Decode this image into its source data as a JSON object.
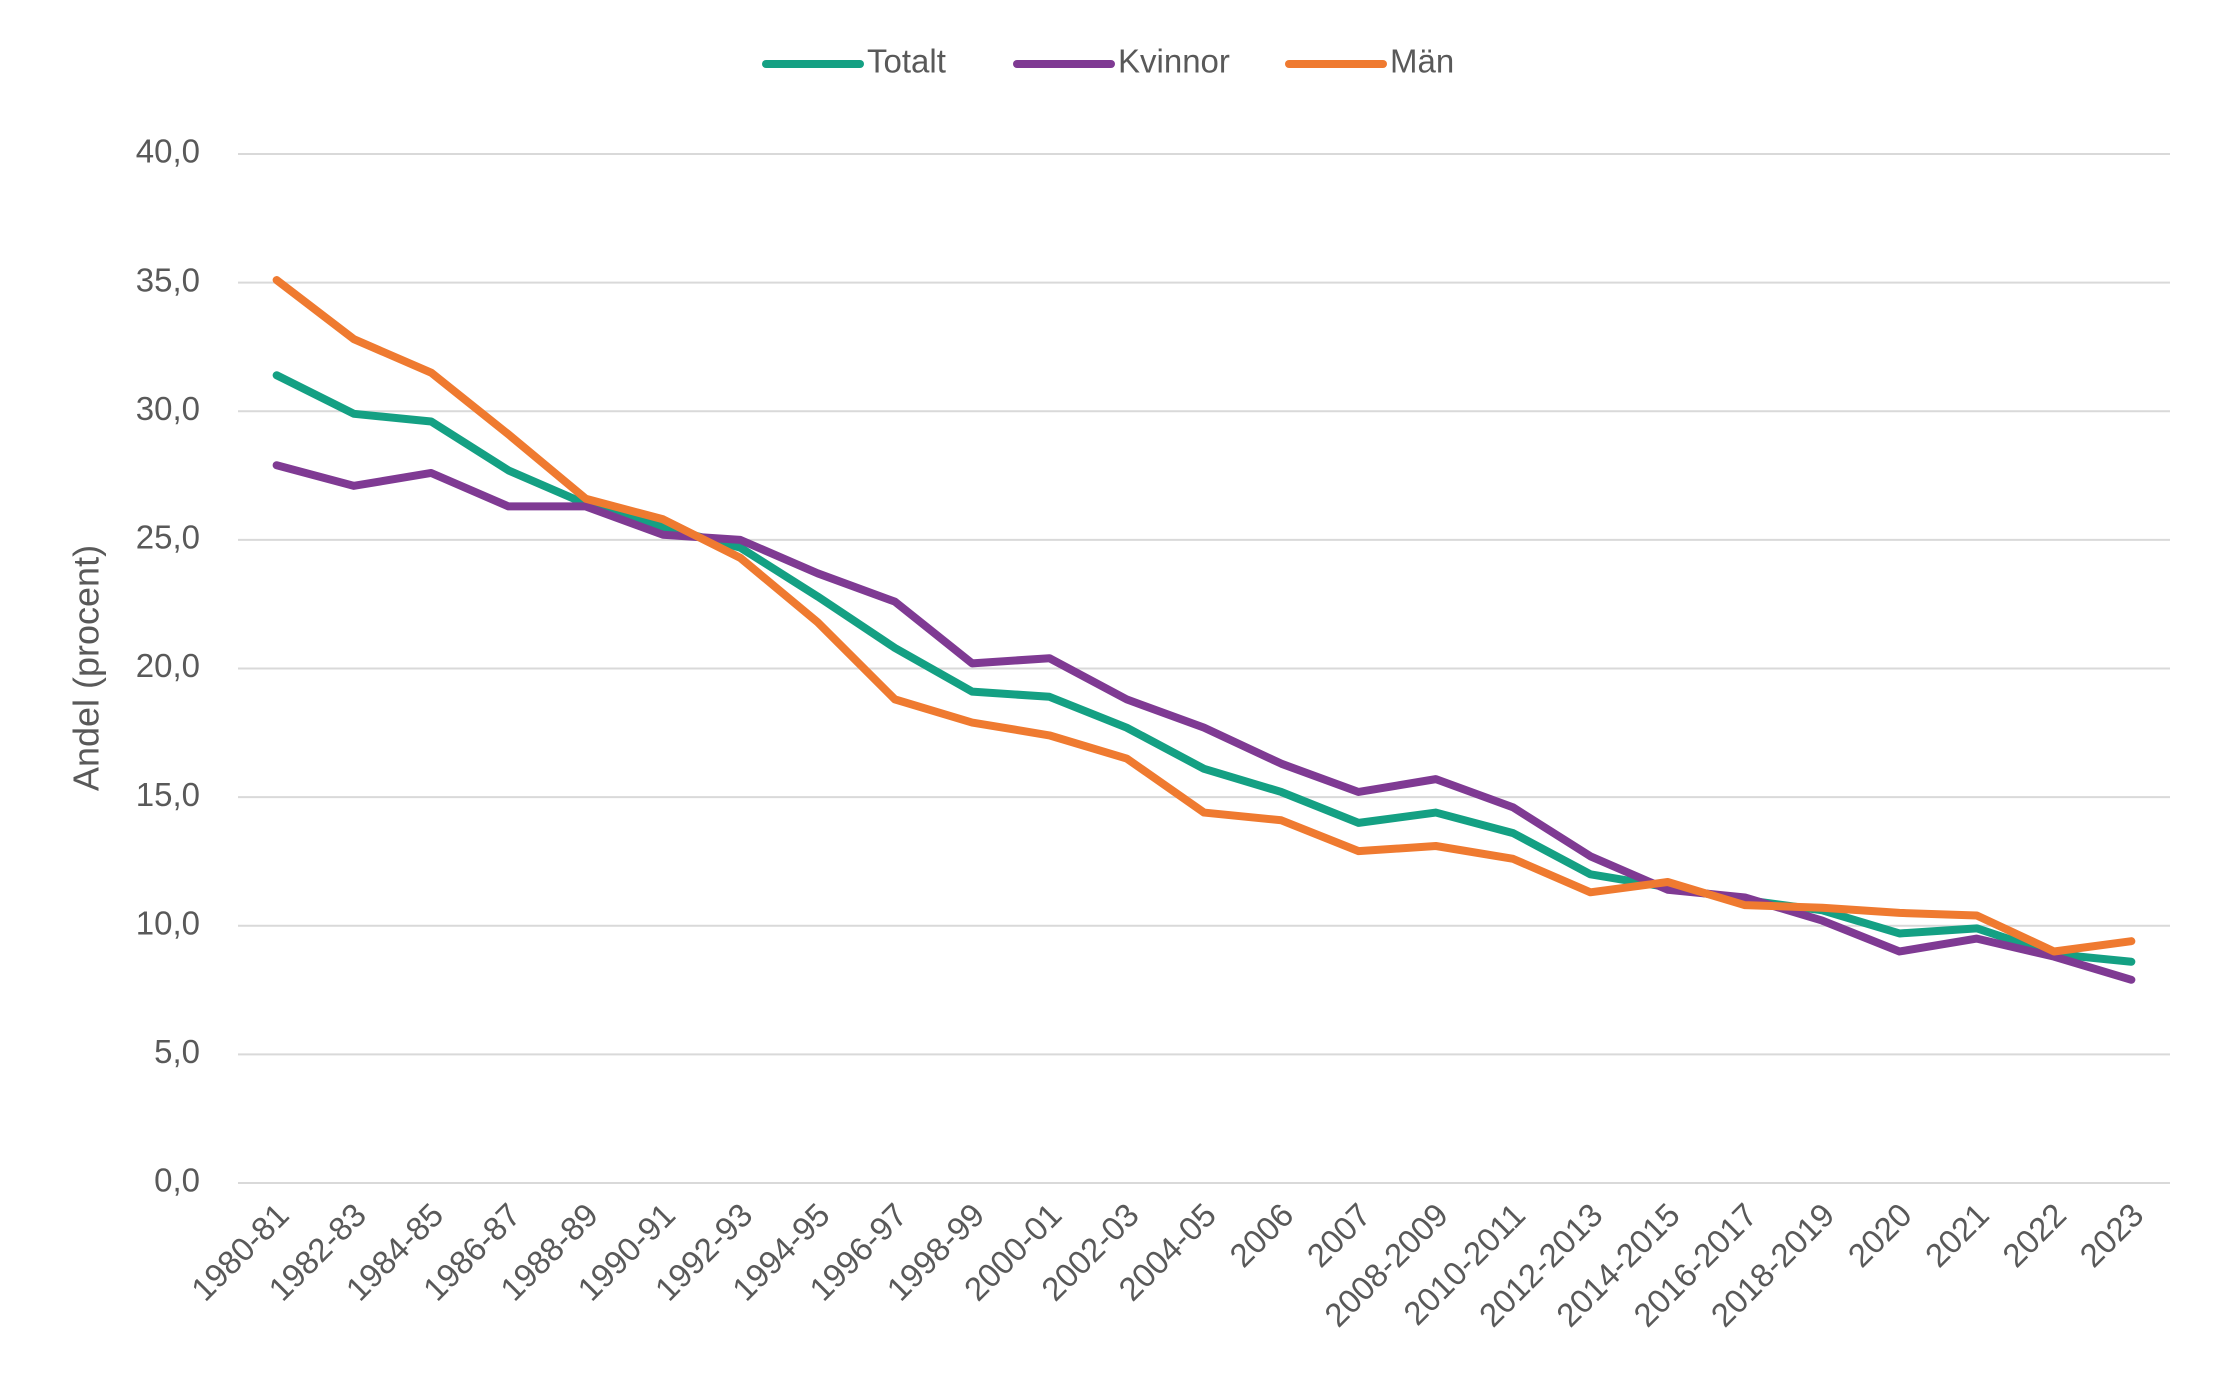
{
  "chart_data": {
    "type": "line",
    "y_label": "Andel (procent)",
    "categories": [
      "1980-81",
      "1982-83",
      "1984-85",
      "1986-87",
      "1988-89",
      "1990-91",
      "1992-93",
      "1994-95",
      "1996-97",
      "1998-99",
      "2000-01",
      "2002-03",
      "2004-05",
      "2006",
      "2007",
      "2008-2009",
      "2010-2011",
      "2012-2013",
      "2014-2015",
      "2016-2017",
      "2018-2019",
      "2020",
      "2021",
      "2022",
      "2023"
    ],
    "series": [
      {
        "name": "Totalt",
        "color": "#14a083",
        "values": [
          31.4,
          29.9,
          29.6,
          27.7,
          26.4,
          25.5,
          24.7,
          22.8,
          20.8,
          19.1,
          18.9,
          17.7,
          16.1,
          15.2,
          14.0,
          14.4,
          13.6,
          12.0,
          11.5,
          11.0,
          10.6,
          9.7,
          9.9,
          8.9,
          8.6
        ]
      },
      {
        "name": "Kvinnor",
        "color": "#7f3a93",
        "values": [
          27.9,
          27.1,
          27.6,
          26.3,
          26.3,
          25.2,
          25.0,
          23.7,
          22.6,
          20.2,
          20.4,
          18.8,
          17.7,
          16.3,
          15.2,
          15.7,
          14.6,
          12.7,
          11.4,
          11.1,
          10.2,
          9.0,
          9.5,
          8.8,
          7.9
        ]
      },
      {
        "name": "Män",
        "color": "#ef7a30",
        "values": [
          35.1,
          32.8,
          31.5,
          29.1,
          26.6,
          25.8,
          24.3,
          21.8,
          18.8,
          17.9,
          17.4,
          16.5,
          14.4,
          14.1,
          12.9,
          13.1,
          12.6,
          11.3,
          11.7,
          10.8,
          10.7,
          10.5,
          10.4,
          9.0,
          9.4
        ]
      }
    ],
    "ylim": [
      0,
      40
    ],
    "yticks": [
      {
        "value": 0,
        "label": "0,0"
      },
      {
        "value": 5,
        "label": "5,0"
      },
      {
        "value": 10,
        "label": "10,0"
      },
      {
        "value": 15,
        "label": "15,0"
      },
      {
        "value": 20,
        "label": "20,0"
      },
      {
        "value": 25,
        "label": "25,0"
      },
      {
        "value": 30,
        "label": "30,0"
      },
      {
        "value": 35,
        "label": "35,0"
      },
      {
        "value": 40,
        "label": "40,0"
      }
    ],
    "grid": true,
    "legend": "top"
  }
}
